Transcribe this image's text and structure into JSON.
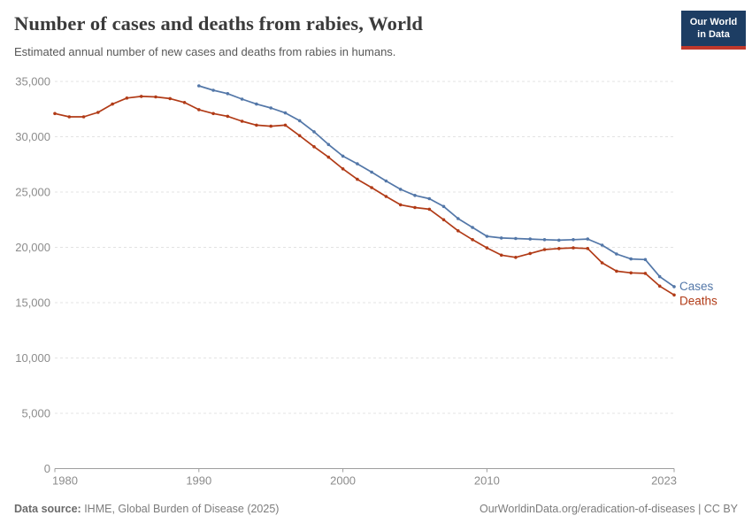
{
  "header": {
    "title": "Number of cases and deaths from rabies, World",
    "subtitle": "Estimated annual number of new cases and deaths from rabies in humans."
  },
  "logo": {
    "line1": "Our World",
    "line2": "in Data"
  },
  "footer": {
    "source_label": "Data source:",
    "source_text": " IHME, Global Burden of Disease (2025)",
    "rights": "OurWorldinData.org/eradication-of-diseases | CC BY"
  },
  "colors": {
    "cases_line": "#5377A8",
    "deaths_line": "#B13B17",
    "grid": "#e3e3e3",
    "axis": "#9e9e9e",
    "tick_label": "#8c8c8c",
    "logo_navy": "#1d3d63",
    "logo_red": "#c0382b"
  },
  "chart_data": {
    "type": "line",
    "title": "Number of cases and deaths from rabies, World",
    "xlabel": "",
    "ylabel": "",
    "xlim": [
      1980,
      2023
    ],
    "ylim": [
      0,
      35000
    ],
    "xticks": [
      1980,
      1990,
      2000,
      2010,
      2023
    ],
    "yticks": [
      0,
      5000,
      10000,
      15000,
      20000,
      25000,
      30000,
      35000
    ],
    "grid": "horizontal-dashed",
    "legend_position": "line-end-labels",
    "series": [
      {
        "name": "Cases",
        "color": "#5377A8",
        "years": [
          1990,
          1991,
          1992,
          1993,
          1994,
          1995,
          1996,
          1997,
          1998,
          1999,
          2000,
          2001,
          2002,
          2003,
          2004,
          2005,
          2006,
          2007,
          2008,
          2009,
          2010,
          2011,
          2012,
          2013,
          2014,
          2015,
          2016,
          2017,
          2018,
          2019,
          2020,
          2021,
          2022,
          2023
        ],
        "values": [
          34600,
          34200,
          33900,
          33400,
          32950,
          32600,
          32150,
          31450,
          30450,
          29300,
          28250,
          27550,
          26800,
          26000,
          25250,
          24700,
          24400,
          23700,
          22600,
          21800,
          21000,
          20850,
          20800,
          20750,
          20700,
          20650,
          20700,
          20750,
          20200,
          19400,
          18950,
          18900,
          17350,
          16450
        ]
      },
      {
        "name": "Deaths",
        "color": "#B13B17",
        "years": [
          1980,
          1981,
          1982,
          1983,
          1984,
          1985,
          1986,
          1987,
          1988,
          1989,
          1990,
          1991,
          1992,
          1993,
          1994,
          1995,
          1996,
          1997,
          1998,
          1999,
          2000,
          2001,
          2002,
          2003,
          2004,
          2005,
          2006,
          2007,
          2008,
          2009,
          2010,
          2011,
          2012,
          2013,
          2014,
          2015,
          2016,
          2017,
          2018,
          2019,
          2020,
          2021,
          2022,
          2023
        ],
        "values": [
          32100,
          31800,
          31800,
          32200,
          32950,
          33500,
          33650,
          33600,
          33450,
          33100,
          32450,
          32100,
          31850,
          31400,
          31050,
          30950,
          31050,
          30100,
          29100,
          28150,
          27100,
          26150,
          25400,
          24600,
          23850,
          23600,
          23450,
          22500,
          21500,
          20700,
          19950,
          19300,
          19100,
          19450,
          19800,
          19900,
          19950,
          19900,
          18600,
          17850,
          17700,
          17650,
          16500,
          15700
        ]
      }
    ]
  }
}
